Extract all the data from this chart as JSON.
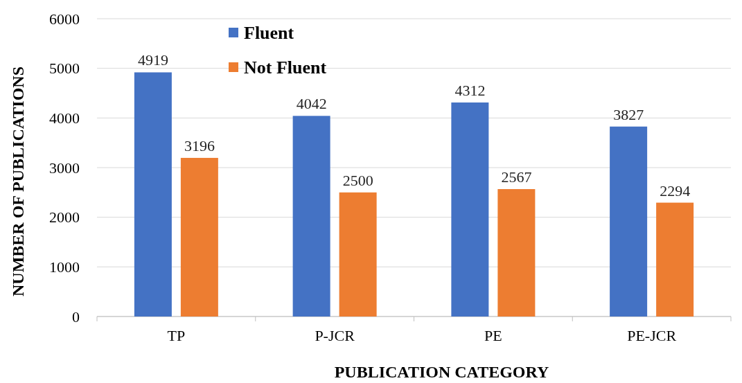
{
  "chart_data": {
    "type": "bar",
    "xlabel": "PUBLICATION CATEGORY",
    "ylabel": "NUMBER OF PUBLICATIONS",
    "categories": [
      "TP",
      "P-JCR",
      "PE",
      "PE-JCR"
    ],
    "series": [
      {
        "name": "Fluent",
        "color": "#4472c4",
        "values": [
          4919,
          4042,
          4312,
          3827
        ]
      },
      {
        "name": "Not Fluent",
        "color": "#ed7d31",
        "values": [
          3196,
          2500,
          2567,
          2294
        ]
      }
    ],
    "ylim": [
      0,
      6000
    ],
    "yticks": [
      0,
      1000,
      2000,
      3000,
      4000,
      5000,
      6000
    ],
    "grid": "y",
    "legend": "top left",
    "data_labels": true
  }
}
